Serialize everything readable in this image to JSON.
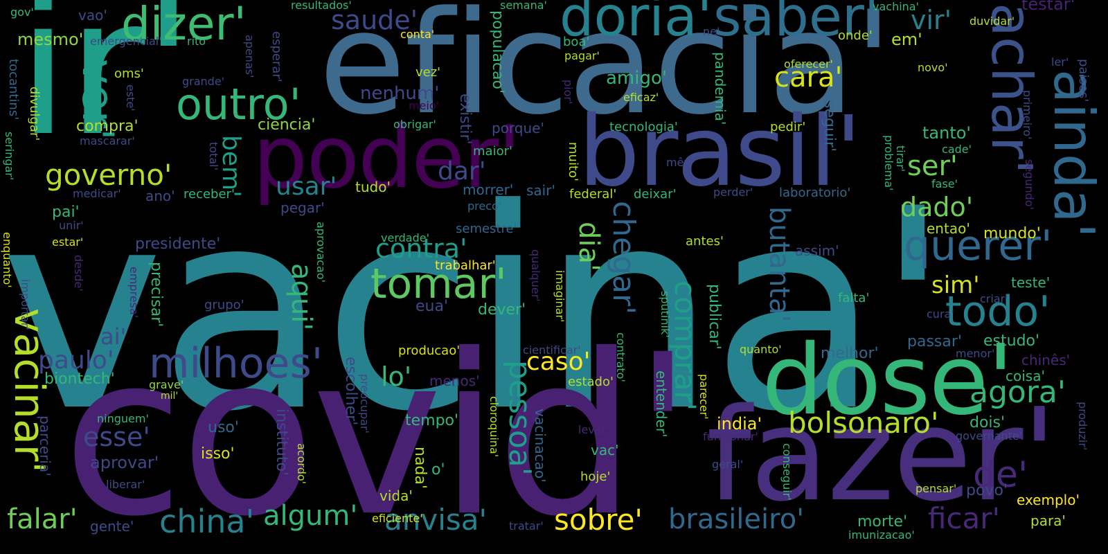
{
  "palette": {
    "background": "#000000",
    "purple_dark": "#440154",
    "purple": "#482173",
    "indigo": "#3e4a89",
    "blue": "#31688e",
    "teal": "#26828e",
    "teal_light": "#1f9e89",
    "green_teal": "#35b779",
    "green": "#6ece58",
    "lime": "#b5de2b",
    "yellow": "#fde725"
  },
  "words": [
    {
      "text": "vacina'",
      "color": "#26828e"
    },
    {
      "text": "covid'",
      "color": "#482173"
    },
    {
      "text": "ir'",
      "color": "#1f9e89"
    },
    {
      "text": "eficacia'",
      "color": "#3e6a8e"
    },
    {
      "text": "fazer'",
      "color": "#472f7d"
    },
    {
      "text": "dose'",
      "color": "#35b779"
    },
    {
      "text": "brasil'",
      "color": "#3e4a89"
    },
    {
      "text": "poder'",
      "color": "#440154"
    },
    {
      "text": "doria'",
      "color": "#26828e"
    },
    {
      "text": "saber'",
      "color": "#2e6f8e"
    },
    {
      "text": "achar'",
      "color": "#3b528b"
    },
    {
      "text": "ainda'",
      "color": "#31688e"
    },
    {
      "text": "dizer'",
      "color": "#3fbc73"
    },
    {
      "text": "outro'",
      "color": "#35b779"
    },
    {
      "text": "ver'",
      "color": "#1f9e89"
    },
    {
      "text": "vacinar'",
      "color": "#b5de2b"
    },
    {
      "text": "milhoes'",
      "color": "#3e4a89"
    },
    {
      "text": "tomar'",
      "color": "#5ec962"
    },
    {
      "text": "querer'",
      "color": "#31688e"
    },
    {
      "text": "todo'",
      "color": "#26828e"
    },
    {
      "text": "agora'",
      "color": "#35b779"
    },
    {
      "text": "de'",
      "color": "#482878"
    },
    {
      "text": "bolsonaro'",
      "color": "#b5de2b"
    },
    {
      "text": "chegar'",
      "color": "#31688e"
    },
    {
      "text": "pessoa'",
      "color": "#1f9e89"
    },
    {
      "text": "comprar'",
      "color": "#1f9e89"
    },
    {
      "text": "butanta'",
      "color": "#31688e"
    },
    {
      "text": "china'",
      "color": "#26828e"
    },
    {
      "text": "anvisa'",
      "color": "#26828e"
    },
    {
      "text": "sobre'",
      "color": "#fde725"
    },
    {
      "text": "brasileiro'",
      "color": "#31688e"
    },
    {
      "text": "ficar'",
      "color": "#482878"
    },
    {
      "text": "algum'",
      "color": "#35b779"
    },
    {
      "text": "falar'",
      "color": "#6ece58"
    },
    {
      "text": "governo'",
      "color": "#b5de2b"
    },
    {
      "text": "saude'",
      "color": "#3e4a89"
    },
    {
      "text": "vir'",
      "color": "#26828e"
    },
    {
      "text": "testar'",
      "color": "#482173"
    },
    {
      "text": "cara'",
      "color": "#d8e219"
    },
    {
      "text": "ser'",
      "color": "#6ece58"
    },
    {
      "text": "dado'",
      "color": "#6ece58"
    },
    {
      "text": "usar'",
      "color": "#26828e"
    },
    {
      "text": "bem'",
      "color": "#1f9e89"
    },
    {
      "text": "dar'",
      "color": "#3e4a89"
    },
    {
      "text": "dia'",
      "color": "#6ece58"
    },
    {
      "text": "aqui'",
      "color": "#35b779"
    },
    {
      "text": "contra'",
      "color": "#1f9e89"
    },
    {
      "text": "caso'",
      "color": "#fde725"
    },
    {
      "text": "sim'",
      "color": "#d8e219"
    },
    {
      "text": "paulo'",
      "color": "#3e4a89"
    },
    {
      "text": "esse'",
      "color": "#3e4a89"
    },
    {
      "text": "lo'",
      "color": "#35b779"
    },
    {
      "text": "ai'",
      "color": "#3e4a89"
    },
    {
      "text": "mesmo'",
      "color": "#90d743"
    },
    {
      "text": "compra'",
      "color": "#b5de2b"
    },
    {
      "text": "amigo'",
      "color": "#35b779"
    },
    {
      "text": "nenhum'",
      "color": "#3e4a89"
    },
    {
      "text": "ciencia'",
      "color": "#90d743"
    },
    {
      "text": "pandemia'",
      "color": "#35b779"
    },
    {
      "text": "tanto'",
      "color": "#35b779"
    },
    {
      "text": "em'",
      "color": "#b5de2b"
    },
    {
      "text": "seguir'",
      "color": "#31688e"
    },
    {
      "text": "populacao'",
      "color": "#35b779"
    },
    {
      "text": "existir'",
      "color": "#3e4a89"
    },
    {
      "text": "presidente'",
      "color": "#3e4a89"
    },
    {
      "text": "precisar'",
      "color": "#35b779"
    },
    {
      "text": "biontech'",
      "color": "#35b779"
    },
    {
      "text": "parceria'",
      "color": "#3e4a89"
    },
    {
      "text": "aprovar'",
      "color": "#3e4a89"
    },
    {
      "text": "isso'",
      "color": "#d8e219"
    },
    {
      "text": "uso'",
      "color": "#31688e"
    },
    {
      "text": "instituto'",
      "color": "#3e4a89"
    },
    {
      "text": "escolher'",
      "color": "#3e4a89"
    },
    {
      "text": "tempo'",
      "color": "#35b779"
    },
    {
      "text": "nada'",
      "color": "#b5de2b"
    },
    {
      "text": "vida'",
      "color": "#b5de2b"
    },
    {
      "text": "vacinacao'",
      "color": "#31688e"
    },
    {
      "text": "india'",
      "color": "#fde725"
    },
    {
      "text": "entender'",
      "color": "#35b779"
    },
    {
      "text": "publicar'",
      "color": "#35b779"
    },
    {
      "text": "passar'",
      "color": "#31688e"
    },
    {
      "text": "estudo'",
      "color": "#35b779"
    },
    {
      "text": "melhor'",
      "color": "#31688e"
    },
    {
      "text": "dois'",
      "color": "#35b779"
    },
    {
      "text": "coisa'",
      "color": "#35b779"
    },
    {
      "text": "chinês'",
      "color": "#482878"
    },
    {
      "text": "teste'",
      "color": "#35b779"
    },
    {
      "text": "mundo'",
      "color": "#d8e219"
    },
    {
      "text": "entao'",
      "color": "#b5de2b"
    },
    {
      "text": "povo'",
      "color": "#3e4a89"
    },
    {
      "text": "exemplo'",
      "color": "#fde725"
    },
    {
      "text": "para'",
      "color": "#b5de2b"
    },
    {
      "text": "morte'",
      "color": "#35b779"
    },
    {
      "text": "gente'",
      "color": "#3e4a89"
    },
    {
      "text": "eficiente'",
      "color": "#d8e219"
    },
    {
      "text": "tratar'",
      "color": "#3e4a89"
    },
    {
      "text": "hoje'",
      "color": "#b5de2b"
    },
    {
      "text": "vac'",
      "color": "#35b779"
    },
    {
      "text": "o'",
      "color": "#35b779"
    },
    {
      "text": "menos'",
      "color": "#482878"
    },
    {
      "text": "producao'",
      "color": "#d8e219"
    },
    {
      "text": "estado'",
      "color": "#b5de2b"
    },
    {
      "text": "grave'",
      "color": "#90d743"
    },
    {
      "text": "mil'",
      "color": "#b5de2b"
    },
    {
      "text": "eua'",
      "color": "#3e4a89"
    },
    {
      "text": "dever'",
      "color": "#35b779"
    },
    {
      "text": "trabalhar'",
      "color": "#fde725"
    },
    {
      "text": "verdade'",
      "color": "#35b779"
    },
    {
      "text": "semestre'",
      "color": "#31688e"
    },
    {
      "text": "aprovacao'",
      "color": "#35b779"
    },
    {
      "text": "morrer'",
      "color": "#31688e"
    },
    {
      "text": "sair'",
      "color": "#31688e"
    },
    {
      "text": "federal'",
      "color": "#b5de2b"
    },
    {
      "text": "deixar'",
      "color": "#35b779"
    },
    {
      "text": "perder'",
      "color": "#3e4a89"
    },
    {
      "text": "laboratorio'",
      "color": "#31688e"
    },
    {
      "text": "fase'",
      "color": "#35b779"
    },
    {
      "text": "cade'",
      "color": "#35b779"
    },
    {
      "text": "problema'",
      "color": "#35b779"
    },
    {
      "text": "tirar'",
      "color": "#35b779"
    },
    {
      "text": "segundo'",
      "color": "#482878"
    },
    {
      "text": "primeiro'",
      "color": "#3e4a89"
    },
    {
      "text": "paises'",
      "color": "#3e4a89"
    },
    {
      "text": "ler'",
      "color": "#3e4a89"
    },
    {
      "text": "novo'",
      "color": "#b5de2b"
    },
    {
      "text": "duvidar'",
      "color": "#b5de2b"
    },
    {
      "text": "vachina'",
      "color": "#35b779"
    },
    {
      "text": "onde'",
      "color": "#b5de2b"
    },
    {
      "text": "ne'",
      "color": "#3e4a89"
    },
    {
      "text": "semana'",
      "color": "#35b779"
    },
    {
      "text": "resultados'",
      "color": "#35b779"
    },
    {
      "text": "conta'",
      "color": "#fde725"
    },
    {
      "text": "boa'",
      "color": "#35b779"
    },
    {
      "text": "pagar'",
      "color": "#b5de2b"
    },
    {
      "text": "oferecer'",
      "color": "#b5de2b"
    },
    {
      "text": "vez'",
      "color": "#b5de2b"
    },
    {
      "text": "meio'",
      "color": "#440154"
    },
    {
      "text": "pior'",
      "color": "#482878"
    },
    {
      "text": "eficaz'",
      "color": "#b5de2b"
    },
    {
      "text": "obrigar'",
      "color": "#35b779"
    },
    {
      "text": "porque'",
      "color": "#3e4a89"
    },
    {
      "text": "tecnologia'",
      "color": "#35b779"
    },
    {
      "text": "pedir'",
      "color": "#b5de2b"
    },
    {
      "text": "maior'",
      "color": "#35b779"
    },
    {
      "text": "muito'",
      "color": "#b5de2b"
    },
    {
      "text": "mês'",
      "color": "#3e4a89"
    },
    {
      "text": "tudo'",
      "color": "#b5de2b"
    },
    {
      "text": "preco'",
      "color": "#31688e"
    },
    {
      "text": "pegar'",
      "color": "#3e4a89"
    },
    {
      "text": "receber'",
      "color": "#35b779"
    },
    {
      "text": "ano'",
      "color": "#3e4a89"
    },
    {
      "text": "total'",
      "color": "#3e4a89"
    },
    {
      "text": "esperar'",
      "color": "#3e4a89"
    },
    {
      "text": "apenas'",
      "color": "#3e4a89"
    },
    {
      "text": "grande'",
      "color": "#3e4a89"
    },
    {
      "text": "emergencial'",
      "color": "#3e4a89"
    },
    {
      "text": "rito'",
      "color": "#35b779"
    },
    {
      "text": "vao'",
      "color": "#3e4a89"
    },
    {
      "text": "gov'",
      "color": "#35b779"
    },
    {
      "text": "oms'",
      "color": "#b5de2b"
    },
    {
      "text": "este'",
      "color": "#3e4a89"
    },
    {
      "text": "tocantins'",
      "color": "#31688e"
    },
    {
      "text": "divulgar'",
      "color": "#b5de2b"
    },
    {
      "text": "seringar'",
      "color": "#35b779"
    },
    {
      "text": "mascarar'",
      "color": "#3e4a89"
    },
    {
      "text": "medicar'",
      "color": "#3e4a89"
    },
    {
      "text": "pai'",
      "color": "#35b779"
    },
    {
      "text": "unir'",
      "color": "#3e4a89"
    },
    {
      "text": "estar'",
      "color": "#d8e219"
    },
    {
      "text": "enquanto'",
      "color": "#d8e219"
    },
    {
      "text": "desde'",
      "color": "#482878"
    },
    {
      "text": "importar'",
      "color": "#3e4a89"
    },
    {
      "text": "empresa'",
      "color": "#482878"
    },
    {
      "text": "grupo'",
      "color": "#3e4a89"
    },
    {
      "text": "qualquer'",
      "color": "#482878"
    },
    {
      "text": "imaginar'",
      "color": "#b5de2b"
    },
    {
      "text": "antes'",
      "color": "#b5de2b"
    },
    {
      "text": "assim'",
      "color": "#3e4a89"
    },
    {
      "text": "falta'",
      "color": "#35b779"
    },
    {
      "text": "quanto'",
      "color": "#b5de2b"
    },
    {
      "text": "menor'",
      "color": "#3e4a89"
    },
    {
      "text": "criar'",
      "color": "#3e4a89"
    },
    {
      "text": "cura'",
      "color": "#3e4a89"
    },
    {
      "text": "sputinik'",
      "color": "#35b779"
    },
    {
      "text": "cientificar'",
      "color": "#3e4a89"
    },
    {
      "text": "contrato'",
      "color": "#35b779"
    },
    {
      "text": "parecer'",
      "color": "#d8e219"
    },
    {
      "text": "funcionar'",
      "color": "#482878"
    },
    {
      "text": "geral'",
      "color": "#3e4a89"
    },
    {
      "text": "conseguir'",
      "color": "#35b779"
    },
    {
      "text": "pensar'",
      "color": "#b5de2b"
    },
    {
      "text": "imunizacao'",
      "color": "#35b779"
    },
    {
      "text": "governante'",
      "color": "#3e4a89"
    },
    {
      "text": "produzir'",
      "color": "#3e4a89"
    },
    {
      "text": "levar'",
      "color": "#482878"
    },
    {
      "text": "cloroquina'",
      "color": "#b5de2b"
    },
    {
      "text": "acordo'",
      "color": "#b5de2b"
    },
    {
      "text": "preocupar'",
      "color": "#3e4a89"
    },
    {
      "text": "ninguem'",
      "color": "#35b779"
    },
    {
      "text": "liberar'",
      "color": "#3e4a89"
    }
  ]
}
